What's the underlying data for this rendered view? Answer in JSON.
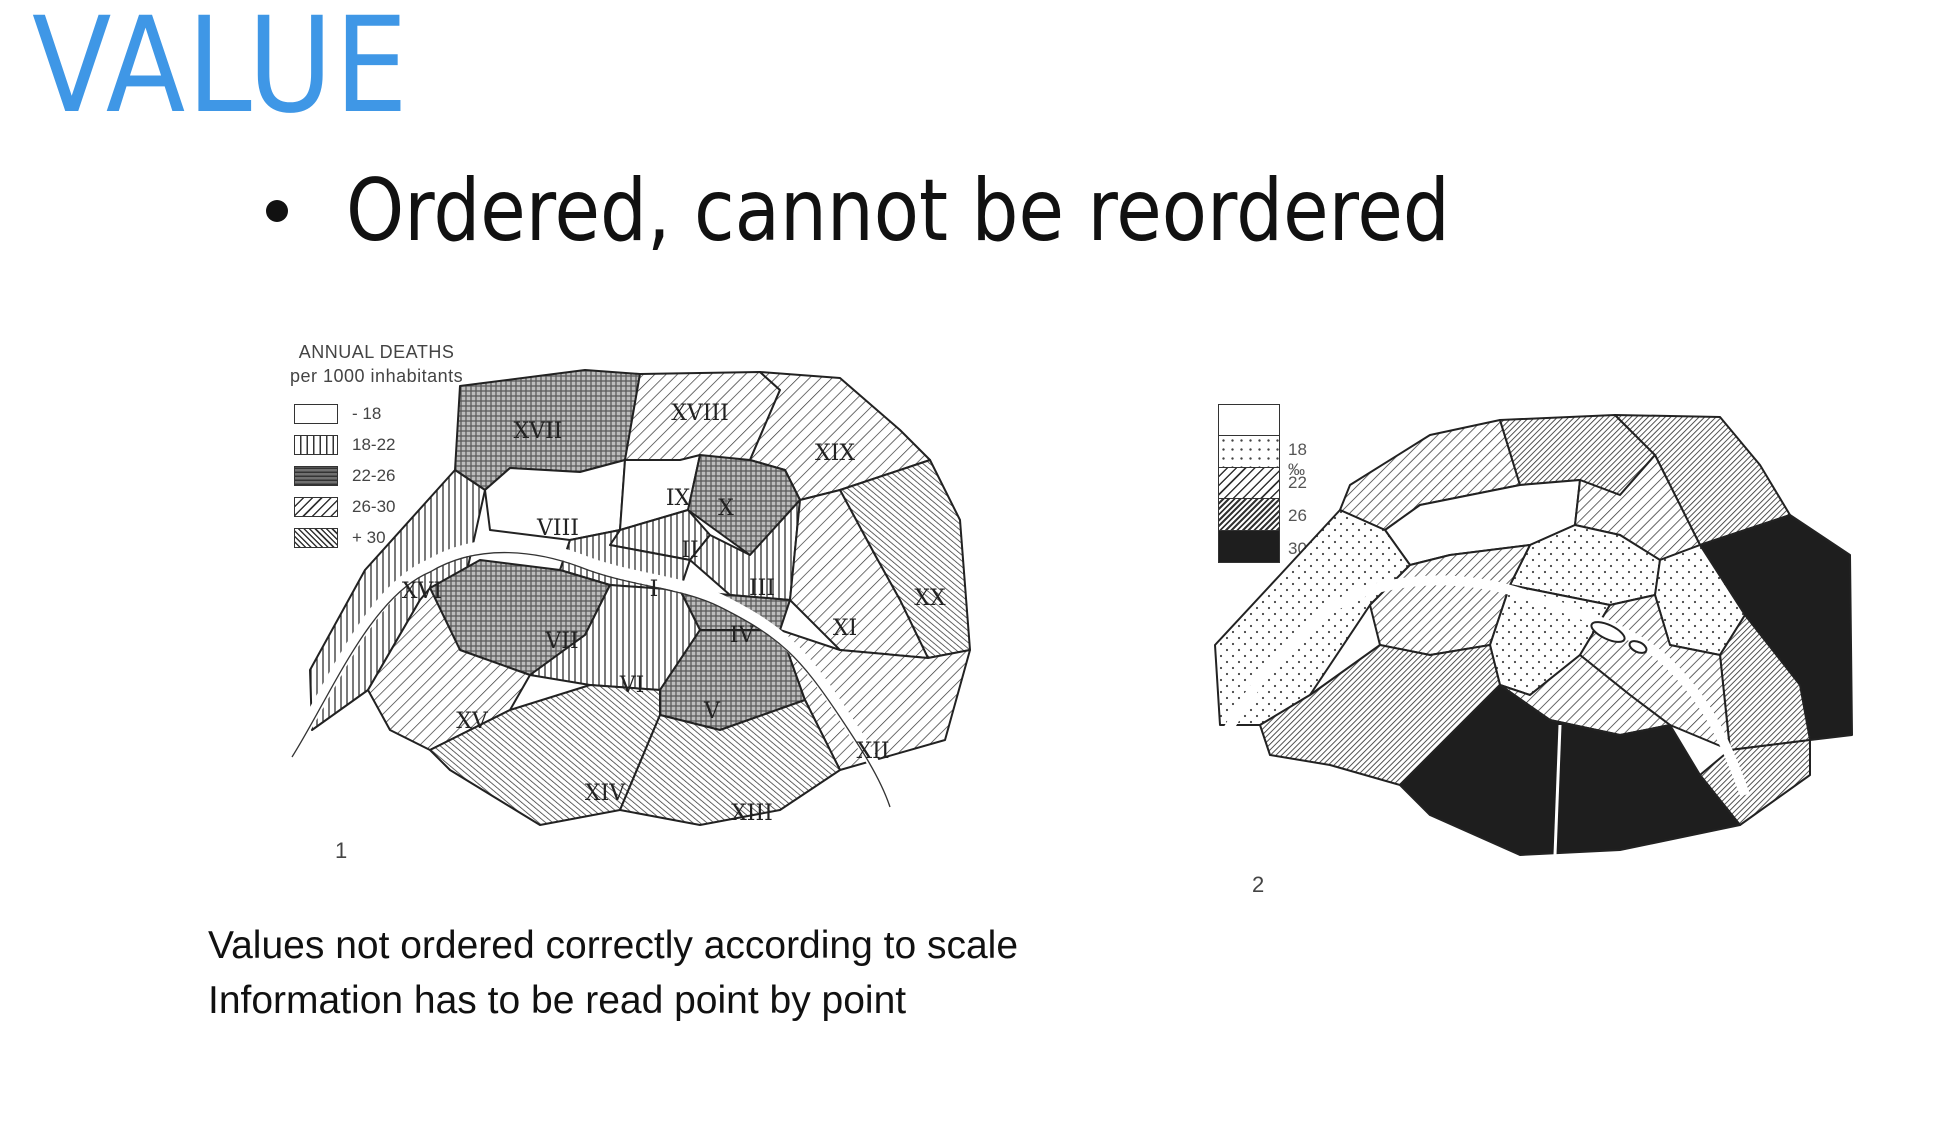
{
  "slide": {
    "title": "VALUE",
    "bullet": "Ordered, cannot be reordered",
    "caption_lines": [
      "Values not ordered correctly according to scale",
      "Information has to be read point by point"
    ]
  },
  "map1": {
    "legend_title": [
      "ANNUAL DEATHS",
      "per 1000 inhabitants"
    ],
    "legend": [
      {
        "label": "- 18",
        "pattern": "white"
      },
      {
        "label": "18-22",
        "pattern": "vertical"
      },
      {
        "label": "22-26",
        "pattern": "grid"
      },
      {
        "label": "26-30",
        "pattern": "diag-wide"
      },
      {
        "label": "+ 30",
        "pattern": "diag-dense"
      }
    ],
    "figure_number": "1",
    "arrondissements": [
      "I",
      "II",
      "III",
      "IV",
      "V",
      "VI",
      "VII",
      "VIII",
      "IX",
      "X",
      "XI",
      "XII",
      "XIII",
      "XIV",
      "XV",
      "XVI",
      "XVII",
      "XVIII",
      "XIX",
      "XX"
    ]
  },
  "map2": {
    "legend": [
      {
        "label": "",
        "pattern": "white"
      },
      {
        "label": "18 ‰",
        "pattern": "dots"
      },
      {
        "label": "22",
        "pattern": "diag-wide"
      },
      {
        "label": "26",
        "pattern": "diag-dense"
      },
      {
        "label": "30",
        "pattern": "black"
      }
    ],
    "figure_number": "2"
  },
  "colors": {
    "title": "#3f97e6",
    "ink": "#222222",
    "black_fill": "#1e1e1e"
  }
}
